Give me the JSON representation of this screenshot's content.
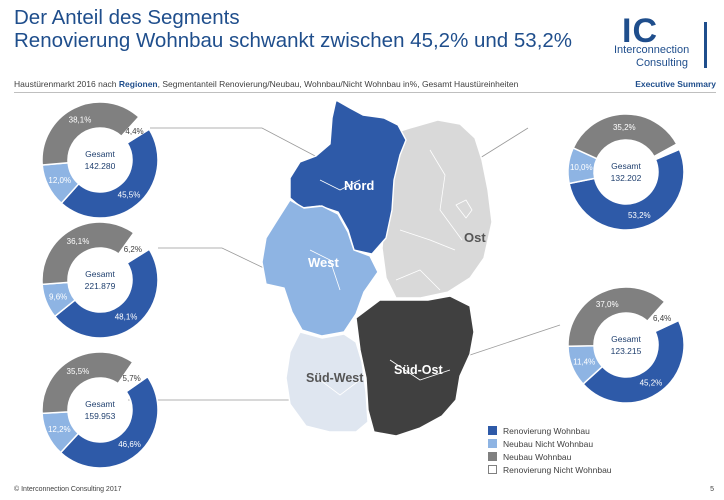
{
  "header": {
    "title_line1": "Der Anteil des Segments",
    "title_line2": "Renovierung Wohnbau schwankt zwischen 45,2% und 53,2%",
    "subtitle_pre": "Haustürenmarkt 2016 nach ",
    "subtitle_bold": "Regionen",
    "subtitle_post": ", Segmentanteil Renovierung/Neubau, Wohnbau/Nicht Wohnbau in%, Gesamt Haustüreinheiten",
    "exec_label": "Executive Summary"
  },
  "logo": {
    "letters": "IC",
    "line1": "Interconnection",
    "line2": "Consulting"
  },
  "footer": {
    "copyright": "© Interconnection Consulting 2017",
    "page": "5"
  },
  "colors": {
    "renovierung_wohnbau": "#2e5aa8",
    "neubau_nicht_wohnbau": "#8eb4e3",
    "neubau_wohnbau": "#808080",
    "renovierung_nicht_wohnbau": "#ffffff",
    "title": "#1f4e8c"
  },
  "map_labels": {
    "nord": "Nord",
    "west": "West",
    "ost": "Ost",
    "sued_west": "Süd-West",
    "sued_ost": "Süd-Ost"
  },
  "chart_data": [
    {
      "type": "pie",
      "region": "Nord",
      "total_label": "Gesamt",
      "total": "142.280",
      "categories": [
        "Renovierung Wohnbau",
        "Neubau Nicht Wohnbau",
        "Neubau Wohnbau",
        "Renovierung Nicht Wohnbau"
      ],
      "values": [
        45.5,
        12.0,
        38.1,
        4.4
      ],
      "labels": [
        "45,5%",
        "12,0%",
        "38,1%",
        "4,4%"
      ]
    },
    {
      "type": "pie",
      "region": "West",
      "total_label": "Gesamt",
      "total": "221.879",
      "categories": [
        "Renovierung Wohnbau",
        "Neubau Nicht Wohnbau",
        "Neubau Wohnbau",
        "Renovierung Nicht Wohnbau"
      ],
      "values": [
        48.1,
        9.6,
        36.1,
        6.2
      ],
      "labels": [
        "48,1%",
        "9,6%",
        "36,1%",
        "6,2%"
      ]
    },
    {
      "type": "pie",
      "region": "Süd-West",
      "total_label": "Gesamt",
      "total": "159.953",
      "categories": [
        "Renovierung Wohnbau",
        "Neubau Nicht Wohnbau",
        "Neubau Wohnbau",
        "Renovierung Nicht Wohnbau"
      ],
      "values": [
        46.6,
        12.2,
        35.5,
        5.7
      ],
      "labels": [
        "46,6%",
        "12,2%",
        "35,5%",
        "5,7%"
      ]
    },
    {
      "type": "pie",
      "region": "Ost",
      "total_label": "Gesamt",
      "total": "132.202",
      "categories": [
        "Renovierung Wohnbau",
        "Neubau Nicht Wohnbau",
        "Neubau Wohnbau",
        "Renovierung Nicht Wohnbau"
      ],
      "values": [
        53.2,
        10.0,
        35.2,
        1.6
      ],
      "labels": [
        "53,2%",
        "10,0%",
        "35,2%",
        ""
      ]
    },
    {
      "type": "pie",
      "region": "Süd-Ost",
      "total_label": "Gesamt",
      "total": "123.215",
      "categories": [
        "Renovierung Wohnbau",
        "Neubau Nicht Wohnbau",
        "Neubau Wohnbau",
        "Renovierung Nicht Wohnbau"
      ],
      "values": [
        45.2,
        11.4,
        37.0,
        6.4
      ],
      "labels": [
        "45,2%",
        "11,4%",
        "37,0%",
        "6,4%"
      ]
    }
  ],
  "legend": [
    "Renovierung Wohnbau",
    "Neubau Nicht Wohnbau",
    "Neubau Wohnbau",
    "Renovierung Nicht Wohnbau"
  ]
}
